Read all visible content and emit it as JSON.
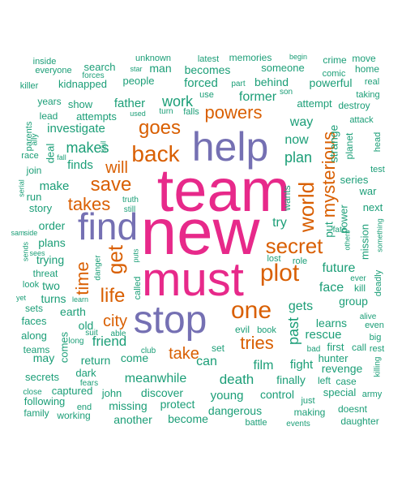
{
  "colors": {
    "green": "#1b9e77",
    "orange": "#d95f02",
    "purple": "#7570b3",
    "magenta": "#e7298a"
  },
  "words": [
    {
      "text": "team",
      "color": "#e7298a"
    },
    {
      "text": "new",
      "color": "#e7298a"
    },
    {
      "text": "must",
      "color": "#e7298a"
    },
    {
      "text": "help",
      "color": "#7570b3"
    },
    {
      "text": "find",
      "color": "#7570b3"
    },
    {
      "text": "stop",
      "color": "#7570b3"
    },
    {
      "text": "one",
      "color": "#d95f02"
    },
    {
      "text": "plot",
      "color": "#d95f02"
    },
    {
      "text": "secret",
      "color": "#d95f02"
    },
    {
      "text": "world",
      "color": "#d95f02"
    },
    {
      "text": "mysterious",
      "color": "#d95f02"
    },
    {
      "text": "back",
      "color": "#d95f02"
    },
    {
      "text": "goes",
      "color": "#d95f02"
    },
    {
      "text": "powers",
      "color": "#d95f02"
    },
    {
      "text": "save",
      "color": "#d95f02"
    },
    {
      "text": "get",
      "color": "#d95f02"
    },
    {
      "text": "life",
      "color": "#d95f02"
    },
    {
      "text": "time",
      "color": "#d95f02"
    },
    {
      "text": "takes",
      "color": "#d95f02"
    },
    {
      "text": "tries",
      "color": "#d95f02"
    },
    {
      "text": "take",
      "color": "#d95f02"
    },
    {
      "text": "city",
      "color": "#d95f02"
    },
    {
      "text": "will",
      "color": "#d95f02"
    },
    {
      "text": "work",
      "color": "#1b9e77"
    },
    {
      "text": "makes",
      "color": "#1b9e77"
    },
    {
      "text": "plan",
      "color": "#1b9e77"
    },
    {
      "text": "past",
      "color": "#1b9e77"
    },
    {
      "text": "friend",
      "color": "#1b9e77"
    },
    {
      "text": "meanwhile",
      "color": "#1b9e77"
    },
    {
      "text": "death",
      "color": "#1b9e77"
    },
    {
      "text": "can",
      "color": "#1b9e77"
    },
    {
      "text": "gets",
      "color": "#1b9e77"
    },
    {
      "text": "future",
      "color": "#1b9e77"
    },
    {
      "text": "try",
      "color": "#1b9e77"
    },
    {
      "text": "face",
      "color": "#1b9e77"
    },
    {
      "text": "former",
      "color": "#1b9e77"
    },
    {
      "text": "way",
      "color": "#1b9e77"
    },
    {
      "text": "now",
      "color": "#1b9e77"
    },
    {
      "text": "forced",
      "color": "#1b9e77"
    },
    {
      "text": "father",
      "color": "#1b9e77"
    },
    {
      "text": "investigate",
      "color": "#1b9e77"
    },
    {
      "text": "finds",
      "color": "#1b9e77"
    },
    {
      "text": "make",
      "color": "#1b9e77"
    },
    {
      "text": "order",
      "color": "#1b9e77"
    },
    {
      "text": "plans",
      "color": "#1b9e77"
    },
    {
      "text": "trying",
      "color": "#1b9e77"
    },
    {
      "text": "two",
      "color": "#1b9e77"
    },
    {
      "text": "turns",
      "color": "#1b9e77"
    },
    {
      "text": "earth",
      "color": "#1b9e77"
    },
    {
      "text": "old",
      "color": "#1b9e77"
    },
    {
      "text": "story",
      "color": "#1b9e77"
    },
    {
      "text": "run",
      "color": "#1b9e77"
    },
    {
      "text": "join",
      "color": "#1b9e77"
    },
    {
      "text": "deal",
      "color": "#1b9e77"
    },
    {
      "text": "people",
      "color": "#1b9e77"
    },
    {
      "text": "man",
      "color": "#1b9e77"
    },
    {
      "text": "becomes",
      "color": "#1b9e77"
    },
    {
      "text": "someone",
      "color": "#1b9e77"
    },
    {
      "text": "behind",
      "color": "#1b9e77"
    },
    {
      "text": "powerful",
      "color": "#1b9e77"
    },
    {
      "text": "attempt",
      "color": "#1b9e77"
    },
    {
      "text": "kidnapped",
      "color": "#1b9e77"
    },
    {
      "text": "search",
      "color": "#1b9e77"
    },
    {
      "text": "show",
      "color": "#1b9e77"
    },
    {
      "text": "attempts",
      "color": "#1b9e77"
    },
    {
      "text": "lead",
      "color": "#1b9e77"
    },
    {
      "text": "years",
      "color": "#1b9e77"
    },
    {
      "text": "everyone",
      "color": "#1b9e77"
    },
    {
      "text": "inside",
      "color": "#1b9e77"
    },
    {
      "text": "killer",
      "color": "#1b9e77"
    },
    {
      "text": "race",
      "color": "#1b9e77"
    },
    {
      "text": "unknown",
      "color": "#1b9e77"
    },
    {
      "text": "latest",
      "color": "#1b9e77"
    },
    {
      "text": "memories",
      "color": "#1b9e77"
    },
    {
      "text": "begin",
      "color": "#1b9e77"
    },
    {
      "text": "crime",
      "color": "#1b9e77"
    },
    {
      "text": "move",
      "color": "#1b9e77"
    },
    {
      "text": "home",
      "color": "#1b9e77"
    },
    {
      "text": "real",
      "color": "#1b9e77"
    },
    {
      "text": "taking",
      "color": "#1b9e77"
    },
    {
      "text": "destroy",
      "color": "#1b9e77"
    },
    {
      "text": "attack",
      "color": "#1b9e77"
    },
    {
      "text": "comic",
      "color": "#1b9e77"
    },
    {
      "text": "son",
      "color": "#1b9e77"
    },
    {
      "text": "use",
      "color": "#1b9e77"
    },
    {
      "text": "part",
      "color": "#1b9e77"
    },
    {
      "text": "falls",
      "color": "#1b9e77"
    },
    {
      "text": "turn",
      "color": "#1b9e77"
    },
    {
      "text": "forces",
      "color": "#1b9e77"
    },
    {
      "text": "star",
      "color": "#1b9e77"
    },
    {
      "text": "strange",
      "color": "#1b9e77"
    },
    {
      "text": "planet",
      "color": "#1b9e77"
    },
    {
      "text": "head",
      "color": "#1b9e77"
    },
    {
      "text": "test",
      "color": "#1b9e77"
    },
    {
      "text": "series",
      "color": "#1b9e77"
    },
    {
      "text": "war",
      "color": "#1b9e77"
    },
    {
      "text": "next",
      "color": "#1b9e77"
    },
    {
      "text": "power",
      "color": "#1b9e77"
    },
    {
      "text": "wants",
      "color": "#1b9e77"
    },
    {
      "text": "put",
      "color": "#1b9e77"
    },
    {
      "text": "mission",
      "color": "#1b9e77"
    },
    {
      "text": "fate",
      "color": "#1b9e77"
    },
    {
      "text": "others",
      "color": "#1b9e77"
    },
    {
      "text": "something",
      "color": "#1b9e77"
    },
    {
      "text": "lost",
      "color": "#1b9e77"
    },
    {
      "text": "role",
      "color": "#1b9e77"
    },
    {
      "text": "ever",
      "color": "#1b9e77"
    },
    {
      "text": "kill",
      "color": "#1b9e77"
    },
    {
      "text": "deadly",
      "color": "#1b9e77"
    },
    {
      "text": "group",
      "color": "#1b9e77"
    },
    {
      "text": "alive",
      "color": "#1b9e77"
    },
    {
      "text": "even",
      "color": "#1b9e77"
    },
    {
      "text": "big",
      "color": "#1b9e77"
    },
    {
      "text": "learns",
      "color": "#1b9e77"
    },
    {
      "text": "rescue",
      "color": "#1b9e77"
    },
    {
      "text": "first",
      "color": "#1b9e77"
    },
    {
      "text": "call",
      "color": "#1b9e77"
    },
    {
      "text": "rest",
      "color": "#1b9e77"
    },
    {
      "text": "hunter",
      "color": "#1b9e77"
    },
    {
      "text": "bad",
      "color": "#1b9e77"
    },
    {
      "text": "revenge",
      "color": "#1b9e77"
    },
    {
      "text": "killing",
      "color": "#1b9e77"
    },
    {
      "text": "fight",
      "color": "#1b9e77"
    },
    {
      "text": "finally",
      "color": "#1b9e77"
    },
    {
      "text": "left",
      "color": "#1b9e77"
    },
    {
      "text": "case",
      "color": "#1b9e77"
    },
    {
      "text": "special",
      "color": "#1b9e77"
    },
    {
      "text": "army",
      "color": "#1b9e77"
    },
    {
      "text": "doesnt",
      "color": "#1b9e77"
    },
    {
      "text": "daughter",
      "color": "#1b9e77"
    },
    {
      "text": "evil",
      "color": "#1b9e77"
    },
    {
      "text": "book",
      "color": "#1b9e77"
    },
    {
      "text": "set",
      "color": "#1b9e77"
    },
    {
      "text": "film",
      "color": "#1b9e77"
    },
    {
      "text": "young",
      "color": "#1b9e77"
    },
    {
      "text": "control",
      "color": "#1b9e77"
    },
    {
      "text": "just",
      "color": "#1b9e77"
    },
    {
      "text": "dangerous",
      "color": "#1b9e77"
    },
    {
      "text": "making",
      "color": "#1b9e77"
    },
    {
      "text": "battle",
      "color": "#1b9e77"
    },
    {
      "text": "events",
      "color": "#1b9e77"
    },
    {
      "text": "discover",
      "color": "#1b9e77"
    },
    {
      "text": "john",
      "color": "#1b9e77"
    },
    {
      "text": "missing",
      "color": "#1b9e77"
    },
    {
      "text": "protect",
      "color": "#1b9e77"
    },
    {
      "text": "another",
      "color": "#1b9e77"
    },
    {
      "text": "become",
      "color": "#1b9e77"
    },
    {
      "text": "come",
      "color": "#1b9e77"
    },
    {
      "text": "return",
      "color": "#1b9e77"
    },
    {
      "text": "dark",
      "color": "#1b9e77"
    },
    {
      "text": "fears",
      "color": "#1b9e77"
    },
    {
      "text": "club",
      "color": "#1b9e77"
    },
    {
      "text": "captured",
      "color": "#1b9e77"
    },
    {
      "text": "end",
      "color": "#1b9e77"
    },
    {
      "text": "following",
      "color": "#1b9e77"
    },
    {
      "text": "working",
      "color": "#1b9e77"
    },
    {
      "text": "family",
      "color": "#1b9e77"
    },
    {
      "text": "close",
      "color": "#1b9e77"
    },
    {
      "text": "secrets",
      "color": "#1b9e77"
    },
    {
      "text": "may",
      "color": "#1b9e77"
    },
    {
      "text": "teams",
      "color": "#1b9e77"
    },
    {
      "text": "along",
      "color": "#1b9e77"
    },
    {
      "text": "faces",
      "color": "#1b9e77"
    },
    {
      "text": "sets",
      "color": "#1b9e77"
    },
    {
      "text": "yet",
      "color": "#1b9e77"
    },
    {
      "text": "look",
      "color": "#1b9e77"
    },
    {
      "text": "threat",
      "color": "#1b9e77"
    },
    {
      "text": "comes",
      "color": "#1b9e77"
    },
    {
      "text": "long",
      "color": "#1b9e77"
    },
    {
      "text": "suit",
      "color": "#1b9e77"
    },
    {
      "text": "able",
      "color": "#1b9e77"
    },
    {
      "text": "learn",
      "color": "#1b9e77"
    },
    {
      "text": "called",
      "color": "#1b9e77"
    },
    {
      "text": "danger",
      "color": "#1b9e77"
    },
    {
      "text": "puts",
      "color": "#1b9e77"
    },
    {
      "text": "truth",
      "color": "#1b9e77"
    },
    {
      "text": "still",
      "color": "#1b9e77"
    },
    {
      "text": "used",
      "color": "#1b9e77"
    },
    {
      "text": "fall",
      "color": "#1b9e77"
    },
    {
      "text": "trail",
      "color": "#1b9e77"
    },
    {
      "text": "ally",
      "color": "#1b9e77"
    },
    {
      "text": "parents",
      "color": "#1b9e77"
    },
    {
      "text": "serial",
      "color": "#1b9e77"
    },
    {
      "text": "sam",
      "color": "#1b9e77"
    },
    {
      "text": "side",
      "color": "#1b9e77"
    },
    {
      "text": "sends",
      "color": "#1b9e77"
    },
    {
      "text": "sees",
      "color": "#1b9e77"
    }
  ]
}
